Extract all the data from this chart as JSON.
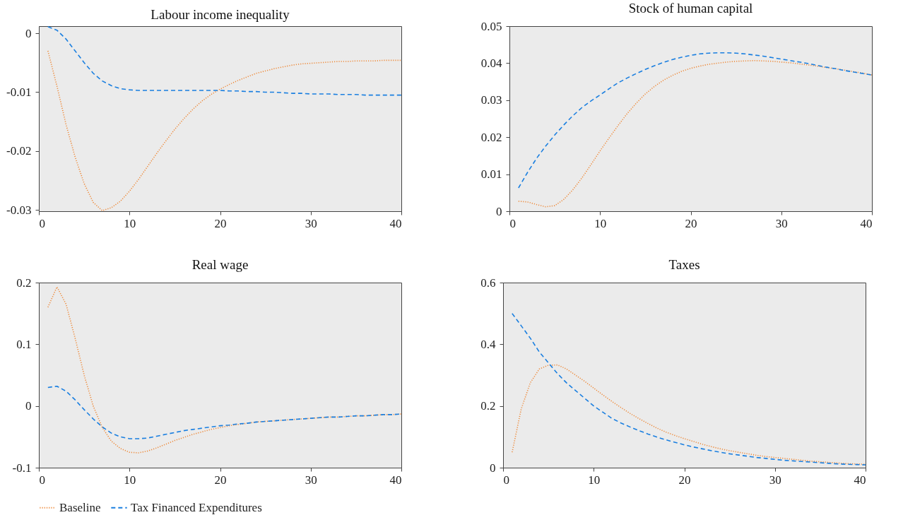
{
  "chart_data": [
    {
      "type": "line",
      "title": "Labour income inequality",
      "x": [
        1,
        2,
        3,
        4,
        5,
        6,
        7,
        8,
        9,
        10,
        11,
        12,
        13,
        14,
        15,
        16,
        17,
        18,
        19,
        20,
        21,
        22,
        23,
        24,
        25,
        26,
        27,
        28,
        29,
        30,
        31,
        32,
        33,
        34,
        35,
        36,
        37,
        38,
        39,
        40
      ],
      "xlim": [
        0,
        40
      ],
      "xticks": [
        0,
        10,
        20,
        30,
        40
      ],
      "ylim": [
        -0.0302,
        0.0012
      ],
      "yticks": [
        -0.03,
        -0.02,
        -0.01,
        0
      ],
      "legend": "bottom",
      "series": [
        {
          "name": "Baseline",
          "color": "#ee8a3a",
          "line_style": "dotted",
          "values": [
            -0.003,
            -0.009,
            -0.0155,
            -0.021,
            -0.0255,
            -0.0287,
            -0.0301,
            -0.0296,
            -0.0285,
            -0.0268,
            -0.0248,
            -0.0226,
            -0.0204,
            -0.0183,
            -0.0163,
            -0.0145,
            -0.0129,
            -0.0115,
            -0.0104,
            -0.0095,
            -0.0087,
            -0.008,
            -0.0074,
            -0.0068,
            -0.0064,
            -0.006,
            -0.0057,
            -0.0054,
            -0.0052,
            -0.0051,
            -0.005,
            -0.0049,
            -0.0048,
            -0.0048,
            -0.0047,
            -0.0047,
            -0.0047,
            -0.0046,
            -0.0046,
            -0.0046
          ]
        },
        {
          "name": "Tax Financed Expenditures",
          "color": "#1a7fe0",
          "line_style": "dashed",
          "values": [
            0.0011,
            0.0005,
            -0.001,
            -0.003,
            -0.005,
            -0.0068,
            -0.0081,
            -0.0089,
            -0.0094,
            -0.0096,
            -0.0097,
            -0.0097,
            -0.0097,
            -0.0097,
            -0.0097,
            -0.0097,
            -0.0097,
            -0.0097,
            -0.0097,
            -0.0097,
            -0.0098,
            -0.0098,
            -0.0099,
            -0.0099,
            -0.01,
            -0.01,
            -0.0101,
            -0.0102,
            -0.0102,
            -0.0103,
            -0.0103,
            -0.0103,
            -0.0104,
            -0.0104,
            -0.0104,
            -0.0105,
            -0.0105,
            -0.0105,
            -0.0105,
            -0.0105
          ]
        }
      ]
    },
    {
      "type": "line",
      "title": "Stock of human capital",
      "x": [
        1,
        2,
        3,
        4,
        5,
        6,
        7,
        8,
        9,
        10,
        11,
        12,
        13,
        14,
        15,
        16,
        17,
        18,
        19,
        20,
        21,
        22,
        23,
        24,
        25,
        26,
        27,
        28,
        29,
        30,
        31,
        32,
        33,
        34,
        35,
        36,
        37,
        38,
        39,
        40
      ],
      "xlim": [
        0,
        40
      ],
      "xticks": [
        0,
        10,
        20,
        30,
        40
      ],
      "ylim": [
        0,
        0.05
      ],
      "yticks": [
        0,
        0.01,
        0.02,
        0.03,
        0.04,
        0.05
      ],
      "legend": "bottom",
      "series": [
        {
          "name": "Baseline",
          "color": "#ee8a3a",
          "line_style": "dotted",
          "values": [
            0.0027,
            0.0025,
            0.0018,
            0.0012,
            0.0015,
            0.0032,
            0.0058,
            0.009,
            0.0126,
            0.0163,
            0.0198,
            0.0232,
            0.0264,
            0.0292,
            0.0317,
            0.0337,
            0.0354,
            0.0367,
            0.0378,
            0.0386,
            0.0392,
            0.0397,
            0.04,
            0.0403,
            0.0405,
            0.0406,
            0.0407,
            0.0406,
            0.0405,
            0.0403,
            0.0401,
            0.0398,
            0.0395,
            0.0392,
            0.0388,
            0.0385,
            0.0381,
            0.0377,
            0.0373,
            0.0368
          ]
        },
        {
          "name": "Tax Financed Expenditures",
          "color": "#1a7fe0",
          "line_style": "dashed",
          "values": [
            0.0063,
            0.0105,
            0.0143,
            0.0176,
            0.0206,
            0.0233,
            0.0258,
            0.028,
            0.0298,
            0.0314,
            0.0331,
            0.0347,
            0.036,
            0.0372,
            0.0383,
            0.0393,
            0.0402,
            0.041,
            0.0416,
            0.0421,
            0.0425,
            0.0427,
            0.0428,
            0.0428,
            0.0427,
            0.0425,
            0.0422,
            0.0419,
            0.0415,
            0.0411,
            0.0407,
            0.0403,
            0.0399,
            0.0394,
            0.0389,
            0.0385,
            0.038,
            0.0376,
            0.0372,
            0.0368
          ]
        }
      ]
    },
    {
      "type": "line",
      "title": "Real wage",
      "x": [
        1,
        2,
        3,
        4,
        5,
        6,
        7,
        8,
        9,
        10,
        11,
        12,
        13,
        14,
        15,
        16,
        17,
        18,
        19,
        20,
        21,
        22,
        23,
        24,
        25,
        26,
        27,
        28,
        29,
        30,
        31,
        32,
        33,
        34,
        35,
        36,
        37,
        38,
        39,
        40
      ],
      "xlim": [
        0,
        40
      ],
      "xticks": [
        0,
        10,
        20,
        30,
        40
      ],
      "ylim": [
        -0.1,
        0.2
      ],
      "yticks": [
        -0.1,
        0,
        0.1,
        0.2
      ],
      "legend": "bottom",
      "series": [
        {
          "name": "Baseline",
          "color": "#ee8a3a",
          "line_style": "dotted",
          "values": [
            0.16,
            0.193,
            0.165,
            0.11,
            0.05,
            0.0,
            -0.035,
            -0.057,
            -0.069,
            -0.075,
            -0.076,
            -0.073,
            -0.068,
            -0.062,
            -0.056,
            -0.051,
            -0.046,
            -0.042,
            -0.038,
            -0.035,
            -0.032,
            -0.03,
            -0.028,
            -0.026,
            -0.025,
            -0.024,
            -0.023,
            -0.022,
            -0.021,
            -0.02,
            -0.019,
            -0.018,
            -0.018,
            -0.017,
            -0.016,
            -0.016,
            -0.015,
            -0.014,
            -0.014,
            -0.013
          ]
        },
        {
          "name": "Tax Financed Expenditures",
          "color": "#1a7fe0",
          "line_style": "dashed",
          "values": [
            0.03,
            0.032,
            0.024,
            0.01,
            -0.006,
            -0.021,
            -0.034,
            -0.044,
            -0.05,
            -0.053,
            -0.053,
            -0.052,
            -0.049,
            -0.046,
            -0.043,
            -0.04,
            -0.038,
            -0.036,
            -0.034,
            -0.032,
            -0.031,
            -0.029,
            -0.028,
            -0.026,
            -0.025,
            -0.024,
            -0.023,
            -0.022,
            -0.021,
            -0.02,
            -0.019,
            -0.018,
            -0.018,
            -0.017,
            -0.016,
            -0.016,
            -0.015,
            -0.014,
            -0.014,
            -0.013
          ]
        }
      ]
    },
    {
      "type": "line",
      "title": "Taxes",
      "x": [
        1,
        2,
        3,
        4,
        5,
        6,
        7,
        8,
        9,
        10,
        11,
        12,
        13,
        14,
        15,
        16,
        17,
        18,
        19,
        20,
        21,
        22,
        23,
        24,
        25,
        26,
        27,
        28,
        29,
        30,
        31,
        32,
        33,
        34,
        35,
        36,
        37,
        38,
        39,
        40
      ],
      "xlim": [
        0,
        40
      ],
      "xticks": [
        0,
        10,
        20,
        30,
        40
      ],
      "ylim": [
        0,
        0.6
      ],
      "yticks": [
        0,
        0.2,
        0.4,
        0.6
      ],
      "legend": "bottom",
      "series": [
        {
          "name": "Baseline",
          "color": "#ee8a3a",
          "line_style": "dotted",
          "values": [
            0.05,
            0.19,
            0.275,
            0.32,
            0.332,
            0.333,
            0.32,
            0.3,
            0.28,
            0.258,
            0.236,
            0.215,
            0.195,
            0.176,
            0.159,
            0.143,
            0.128,
            0.115,
            0.104,
            0.094,
            0.085,
            0.076,
            0.068,
            0.061,
            0.055,
            0.05,
            0.045,
            0.04,
            0.036,
            0.033,
            0.03,
            0.027,
            0.024,
            0.021,
            0.019,
            0.017,
            0.015,
            0.013,
            0.012,
            0.011
          ]
        },
        {
          "name": "Tax Financed Expenditures",
          "color": "#1a7fe0",
          "line_style": "dashed",
          "values": [
            0.5,
            0.46,
            0.42,
            0.375,
            0.34,
            0.305,
            0.275,
            0.25,
            0.225,
            0.2,
            0.18,
            0.16,
            0.145,
            0.132,
            0.12,
            0.109,
            0.099,
            0.09,
            0.082,
            0.074,
            0.067,
            0.061,
            0.055,
            0.05,
            0.045,
            0.041,
            0.037,
            0.033,
            0.03,
            0.027,
            0.024,
            0.022,
            0.02,
            0.018,
            0.016,
            0.014,
            0.012,
            0.011,
            0.01,
            0.009
          ]
        }
      ]
    }
  ]
}
